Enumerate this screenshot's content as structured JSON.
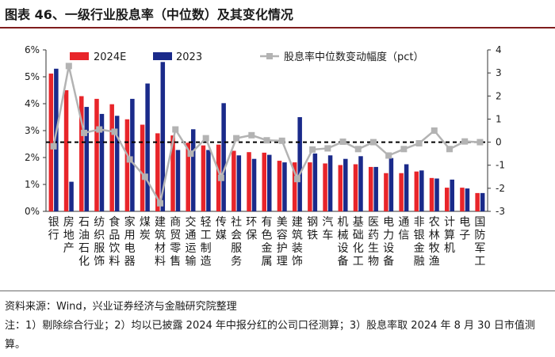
{
  "header": {
    "title": "图表 46、一级行业股息率（中位数）及其变化情况"
  },
  "footer": {
    "source": "资料来源：Wind，兴业证券经济与金融研究院整理",
    "note": "注：1）剔除综合行业；2）均以已披露 2024 年中报分红的公司口径测算；3）股息率取 2024 年 8 月 30 日市值测算。"
  },
  "chart_data": {
    "type": "bar",
    "categories": [
      "银行",
      "房地产",
      "石油石化",
      "纺织服饰",
      "食品饮料",
      "家用电器",
      "煤炭",
      "建筑材料",
      "商贸零售",
      "交通运输",
      "轻工制造",
      "传媒",
      "社会服务",
      "环保",
      "有色金属",
      "美容护理",
      "建筑装饰",
      "钢铁",
      "汽车",
      "机械设备",
      "基础化工",
      "医药生物",
      "电力设备",
      "通信",
      "非银金融",
      "农林牧渔",
      "计算机",
      "电子",
      "国防军工"
    ],
    "series": [
      {
        "name": "2024E",
        "type": "bar",
        "axis": "left",
        "color": "#e8252a",
        "values": [
          5.12,
          4.5,
          4.28,
          4.18,
          3.98,
          3.42,
          3.22,
          2.9,
          2.82,
          2.55,
          2.45,
          2.48,
          2.25,
          2.2,
          2.18,
          1.88,
          1.82,
          1.82,
          1.78,
          1.72,
          1.75,
          1.65,
          1.42,
          1.42,
          1.48,
          1.24,
          0.88,
          0.88,
          0.68
        ]
      },
      {
        "name": "2023",
        "type": "bar",
        "axis": "left",
        "color": "#1a2a8a",
        "values": [
          5.3,
          1.1,
          3.88,
          3.62,
          3.55,
          4.18,
          4.75,
          5.55,
          2.28,
          3.05,
          2.28,
          4.02,
          2.08,
          1.95,
          2.1,
          1.82,
          3.5,
          2.15,
          2.08,
          1.95,
          2.05,
          1.65,
          1.98,
          1.75,
          1.52,
          1.22,
          1.18,
          0.85,
          0.68
        ]
      },
      {
        "name": "股息率中位数变动幅度（pct）",
        "type": "line",
        "axis": "right",
        "color": "#b3b3b3",
        "values": [
          -0.18,
          3.3,
          0.4,
          0.55,
          0.45,
          -0.75,
          -1.5,
          -2.65,
          0.55,
          -0.5,
          0.17,
          -1.55,
          0.17,
          0.3,
          0.08,
          0.06,
          -1.6,
          -0.32,
          -0.27,
          0.02,
          -0.3,
          0,
          -0.58,
          -0.3,
          -0.05,
          0.5,
          -0.3,
          0.03,
          0
        ]
      }
    ],
    "y_left": {
      "min": 0,
      "max": 6,
      "step": 1,
      "tick_labels": [
        "0%",
        "1%",
        "2%",
        "3%",
        "4%",
        "5%",
        "6%"
      ]
    },
    "y_right": {
      "min": -3,
      "max": 4,
      "step": 1,
      "tick_labels": [
        "-3",
        "-2",
        "-1",
        "0",
        "1",
        "2",
        "3",
        "4"
      ]
    },
    "reference_line": {
      "axis": "right",
      "value": 0,
      "style": "dashed"
    },
    "legend": {
      "position": "top",
      "items": [
        "2024E",
        "2023",
        "股息率中位数变动幅度（pct）"
      ]
    },
    "grid": false
  }
}
